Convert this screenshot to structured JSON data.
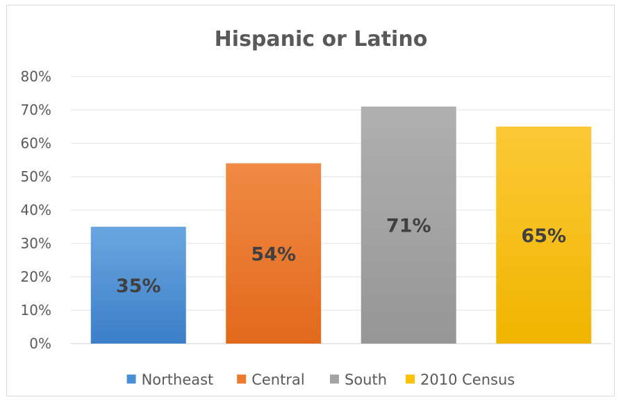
{
  "chart_data": {
    "type": "bar",
    "title": "Hispanic or Latino",
    "categories": [
      "Northeast",
      "Central",
      "South",
      "2010 Census"
    ],
    "values": [
      35,
      54,
      71,
      65
    ],
    "value_labels": [
      "35%",
      "54%",
      "71%",
      "65%"
    ],
    "ylim": [
      0,
      80
    ],
    "y_ticks": [
      0,
      10,
      20,
      30,
      40,
      50,
      60,
      70,
      80
    ],
    "y_tick_labels": [
      "0%",
      "10%",
      "20%",
      "30%",
      "40%",
      "50%",
      "60%",
      "70%",
      "80%"
    ],
    "xlabel": "",
    "ylabel": "",
    "grid": true,
    "legend": {
      "position": "bottom",
      "entries": [
        "Northeast",
        "Central",
        "South",
        "2010 Census"
      ]
    },
    "colors": [
      "#4a8fd6",
      "#ec7a2e",
      "#a3a3a3",
      "#fbc10b"
    ],
    "color_gradients": [
      [
        "#6aa6e0",
        "#3c7fc8"
      ],
      [
        "#f08a45",
        "#e2691c"
      ],
      [
        "#b0b0b0",
        "#969696"
      ],
      [
        "#fcc937",
        "#f0b500"
      ]
    ]
  }
}
